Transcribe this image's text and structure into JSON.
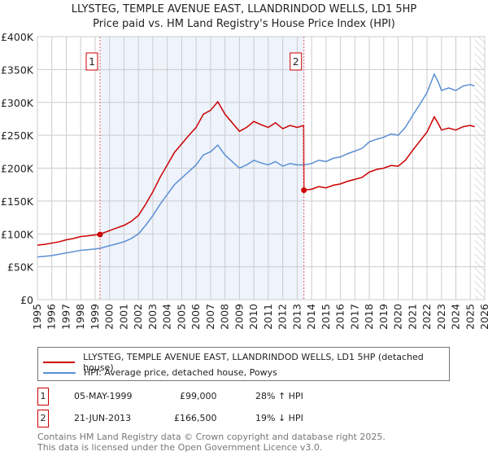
{
  "chart_data": {
    "type": "line",
    "title": "LLYSTEG, TEMPLE AVENUE EAST, LLANDRINDOD WELLS, LD1 5HP",
    "subtitle": "Price paid vs. HM Land Registry's House Price Index (HPI)",
    "xlim": [
      1995,
      2026
    ],
    "ylim": [
      0,
      400000
    ],
    "x_ticks": [
      "1995",
      "1996",
      "1997",
      "1998",
      "1999",
      "2000",
      "2001",
      "2002",
      "2003",
      "2004",
      "2005",
      "2006",
      "2007",
      "2008",
      "2009",
      "2010",
      "2011",
      "2012",
      "2013",
      "2014",
      "2015",
      "2016",
      "2017",
      "2018",
      "2019",
      "2020",
      "2021",
      "2022",
      "2023",
      "2024",
      "2025",
      "2026"
    ],
    "y_ticks": [
      {
        "v": 0,
        "label": "£0"
      },
      {
        "v": 50000,
        "label": "£50K"
      },
      {
        "v": 100000,
        "label": "£100K"
      },
      {
        "v": 150000,
        "label": "£150K"
      },
      {
        "v": 200000,
        "label": "£200K"
      },
      {
        "v": 250000,
        "label": "£250K"
      },
      {
        "v": 300000,
        "label": "£300K"
      },
      {
        "v": 350000,
        "label": "£350K"
      },
      {
        "v": 400000,
        "label": "£400K"
      }
    ],
    "grid": true,
    "shaded_range": [
      1999.34,
      2013.47
    ],
    "forecast_hatch_from": 2025.3,
    "series": [
      {
        "name": "LLYSTEG, TEMPLE AVENUE EAST, LLANDRINDOD WELLS, LD1 5HP (detached house)",
        "color": "#cc0000",
        "x": [
          1995,
          1995.5,
          1996,
          1996.5,
          1997,
          1997.5,
          1998,
          1998.5,
          1999,
          1999.34,
          1999.5,
          2000,
          2000.5,
          2001,
          2001.5,
          2002,
          2002.5,
          2003,
          2003.5,
          2004,
          2004.5,
          2005,
          2005.5,
          2006,
          2006.5,
          2007,
          2007.5,
          2008,
          2008.5,
          2009,
          2009.5,
          2010,
          2010.5,
          2011,
          2011.5,
          2012,
          2012.5,
          2013,
          2013.45,
          2013.47,
          2014,
          2014.5,
          2015,
          2015.5,
          2016,
          2016.5,
          2017,
          2017.5,
          2018,
          2018.5,
          2019,
          2019.5,
          2020,
          2020.5,
          2021,
          2021.5,
          2022,
          2022.5,
          2022.8,
          2023,
          2023.5,
          2024,
          2024.5,
          2025,
          2025.3
        ],
        "y": [
          83,
          84,
          86,
          88,
          91,
          93,
          96,
          97,
          98.5,
          99,
          101,
          105,
          109,
          113,
          119,
          128,
          145,
          164,
          186,
          205,
          224,
          237,
          250,
          262,
          282,
          288,
          301,
          282,
          269,
          256,
          262,
          271,
          266,
          262,
          269,
          260,
          265,
          262,
          265,
          166.5,
          168,
          172,
          170,
          174,
          176,
          180,
          183,
          186,
          194,
          198,
          200,
          204,
          203,
          212,
          227,
          241,
          255,
          278,
          267,
          258,
          261,
          258,
          263,
          265,
          263
        ]
      },
      {
        "name": "HPI: Average price, detached house, Powys",
        "color": "#5b8fd4",
        "x": [
          1995,
          1995.5,
          1996,
          1996.5,
          1997,
          1997.5,
          1998,
          1998.5,
          1999,
          1999.5,
          2000,
          2000.5,
          2001,
          2001.5,
          2002,
          2002.5,
          2003,
          2003.5,
          2004,
          2004.5,
          2005,
          2005.5,
          2006,
          2006.5,
          2007,
          2007.5,
          2008,
          2008.5,
          2009,
          2009.5,
          2010,
          2010.5,
          2011,
          2011.5,
          2012,
          2012.5,
          2013,
          2013.5,
          2014,
          2014.5,
          2015,
          2015.5,
          2016,
          2016.5,
          2017,
          2017.5,
          2018,
          2018.5,
          2019,
          2019.5,
          2020,
          2020.5,
          2021,
          2021.5,
          2022,
          2022.5,
          2022.8,
          2023,
          2023.5,
          2024,
          2024.5,
          2025,
          2025.3
        ],
        "y": [
          65,
          66,
          67,
          69,
          71,
          73,
          75,
          76,
          77,
          79,
          82,
          85,
          88,
          93,
          100,
          113,
          128,
          145,
          160,
          175,
          185,
          195,
          205,
          220,
          225,
          235,
          220,
          210,
          200,
          205,
          212,
          208,
          205,
          210,
          203,
          207,
          205,
          205,
          207,
          212,
          210,
          215,
          217,
          222,
          226,
          230,
          240,
          244,
          247,
          252,
          250,
          262,
          280,
          297,
          315,
          343,
          330,
          318,
          322,
          318,
          325,
          327,
          325
        ]
      }
    ],
    "sales": [
      {
        "num": "1",
        "x": 1999.34,
        "value": 99000
      },
      {
        "num": "2",
        "x": 2013.47,
        "value": 166500
      }
    ]
  },
  "legend": {
    "red": "LLYSTEG, TEMPLE AVENUE EAST, LLANDRINDOD WELLS, LD1 5HP (detached house)",
    "blue": "HPI: Average price, detached house, Powys"
  },
  "table": [
    {
      "num": "1",
      "date": "05-MAY-1999",
      "price": "£99,000",
      "hpi": "28% ↑ HPI"
    },
    {
      "num": "2",
      "date": "21-JUN-2013",
      "price": "£166,500",
      "hpi": "19% ↓ HPI"
    }
  ],
  "footer": {
    "line1": "Contains HM Land Registry data © Crown copyright and database right 2025.",
    "line2": "This data is licensed under the Open Government Licence v3.0."
  }
}
